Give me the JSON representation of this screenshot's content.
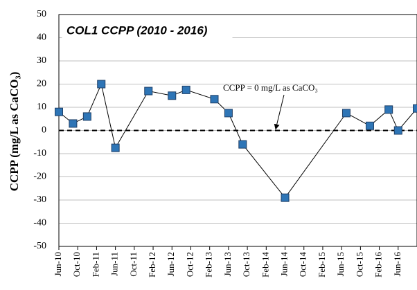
{
  "chart_data": {
    "type": "line",
    "title": "COL1 CCPP (2010 - 2016)",
    "y_label": "CCPP (mg/L as CaCO₃)",
    "annotation": "CCPP = 0 mg/L as CaCO₃",
    "hline": 0,
    "x": [
      "2010-06",
      "2010-09",
      "2010-12",
      "2011-03",
      "2011-06",
      "2012-01",
      "2012-06",
      "2012-09",
      "2013-03",
      "2013-06",
      "2013-09",
      "2014-06",
      "2015-07",
      "2015-12",
      "2016-04",
      "2016-06",
      "2016-10"
    ],
    "series": [
      {
        "name": "COL1 CCPP",
        "color": "#2e75b6",
        "values": [
          8,
          3,
          6,
          20,
          -7.5,
          17,
          15,
          17.5,
          13.5,
          7.5,
          -6,
          -29,
          7.5,
          2,
          9,
          0,
          9.5
        ]
      }
    ],
    "xlim": [
      "2010-06",
      "2016-10"
    ],
    "xticks": [
      {
        "value": "2010-06",
        "label": "Jun-10"
      },
      {
        "value": "2010-10",
        "label": "Oct-10"
      },
      {
        "value": "2011-02",
        "label": "Feb-11"
      },
      {
        "value": "2011-06",
        "label": "Jun-11"
      },
      {
        "value": "2011-10",
        "label": "Oct-11"
      },
      {
        "value": "2012-02",
        "label": "Feb-12"
      },
      {
        "value": "2012-06",
        "label": "Jun-12"
      },
      {
        "value": "2012-10",
        "label": "Oct-12"
      },
      {
        "value": "2013-02",
        "label": "Feb-13"
      },
      {
        "value": "2013-06",
        "label": "Jun-13"
      },
      {
        "value": "2013-10",
        "label": "Oct-13"
      },
      {
        "value": "2014-02",
        "label": "Feb-14"
      },
      {
        "value": "2014-06",
        "label": "Jun-14"
      },
      {
        "value": "2014-10",
        "label": "Oct-14"
      },
      {
        "value": "2015-02",
        "label": "Feb-15"
      },
      {
        "value": "2015-06",
        "label": "Jun-15"
      },
      {
        "value": "2015-10",
        "label": "Oct-15"
      },
      {
        "value": "2016-02",
        "label": "Feb-16"
      },
      {
        "value": "2016-06",
        "label": "Jun-16"
      }
    ],
    "ylim": [
      -50,
      50
    ],
    "yticks": [
      -50,
      -40,
      -30,
      -20,
      -10,
      0,
      10,
      20,
      30,
      40,
      50
    ],
    "grid": true
  }
}
